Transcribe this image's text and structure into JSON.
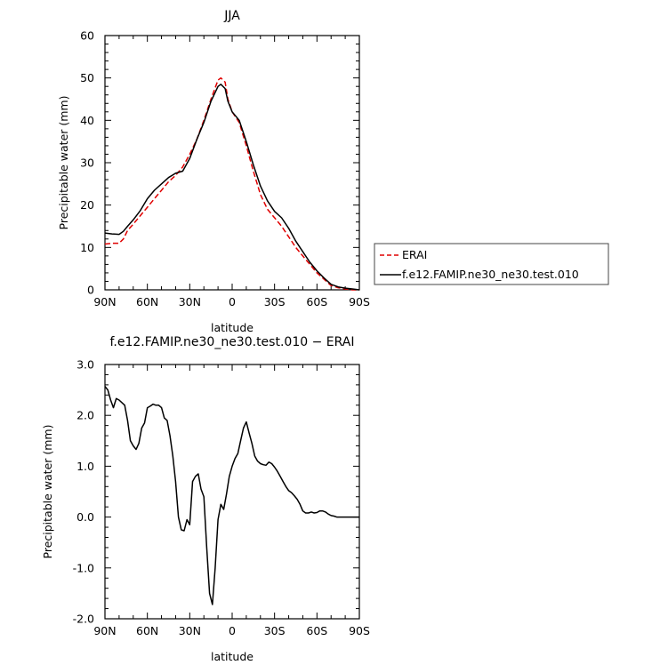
{
  "chart_data": [
    {
      "type": "line",
      "title": "JJA",
      "xlabel": "latitude",
      "ylabel": "Precipitable water (mm)",
      "xlim": [
        90,
        -90
      ],
      "ylim": [
        0,
        60
      ],
      "x_ticks": [
        90,
        60,
        30,
        0,
        -30,
        -60,
        -90
      ],
      "x_tick_labels": [
        "90N",
        "60N",
        "30N",
        "0",
        "30S",
        "60S",
        "90S"
      ],
      "y_ticks": [
        0,
        10,
        20,
        30,
        40,
        50,
        60
      ],
      "y_tick_labels": [
        "0",
        "10",
        "20",
        "30",
        "40",
        "50",
        "60"
      ],
      "legend_placement": "right",
      "series": [
        {
          "name": "ERAI",
          "color": "#e00000",
          "style": "dashed",
          "x": [
            90,
            85,
            80,
            77,
            74,
            70,
            65,
            60,
            55,
            50,
            45,
            40,
            35,
            30,
            25,
            20,
            15,
            10,
            8,
            5,
            3,
            0,
            -5,
            -10,
            -15,
            -20,
            -25,
            -30,
            -35,
            -40,
            -45,
            -50,
            -55,
            -60,
            -65,
            -70,
            -75,
            -80,
            -85,
            -90
          ],
          "y": [
            10.8,
            11.0,
            11.0,
            12.0,
            14.0,
            15.5,
            17.5,
            19.5,
            21.5,
            23.5,
            25.5,
            27.0,
            29.0,
            32.0,
            35.5,
            40.0,
            45.0,
            49.5,
            50.0,
            49.0,
            45.0,
            42.0,
            39.5,
            34.0,
            28.0,
            22.5,
            19.0,
            17.0,
            15.0,
            12.5,
            10.0,
            8.0,
            6.0,
            4.0,
            2.5,
            1.0,
            0.5,
            0.2,
            0.0,
            0.0
          ]
        },
        {
          "name": "f.e12.FAMIP.ne30_ne30.test.010",
          "color": "#000000",
          "style": "solid",
          "x": [
            90,
            85,
            80,
            77,
            74,
            70,
            65,
            60,
            55,
            50,
            45,
            40,
            35,
            30,
            25,
            20,
            15,
            10,
            8,
            5,
            3,
            0,
            -5,
            -10,
            -15,
            -20,
            -25,
            -30,
            -35,
            -40,
            -45,
            -50,
            -55,
            -60,
            -65,
            -70,
            -75,
            -80,
            -85,
            -90
          ],
          "y": [
            13.4,
            13.2,
            13.1,
            13.8,
            15.0,
            16.5,
            18.7,
            21.5,
            23.5,
            25.0,
            26.5,
            27.5,
            28.0,
            31.0,
            35.5,
            39.5,
            44.5,
            48.0,
            48.5,
            47.5,
            44.5,
            42.0,
            40.0,
            35.0,
            29.5,
            24.5,
            21.0,
            18.5,
            17.0,
            14.5,
            11.5,
            9.0,
            6.5,
            4.5,
            2.8,
            1.3,
            0.7,
            0.4,
            0.2,
            0.0
          ]
        }
      ]
    },
    {
      "type": "line",
      "title": "f.e12.FAMIP.ne30_ne30.test.010 − ERAI",
      "xlabel": "latitude",
      "ylabel": "Precipitable water (mm)",
      "xlim": [
        90,
        -90
      ],
      "ylim": [
        -2.0,
        3.0
      ],
      "x_ticks": [
        90,
        60,
        30,
        0,
        -30,
        -60,
        -90
      ],
      "x_tick_labels": [
        "90N",
        "60N",
        "30N",
        "0",
        "30S",
        "60S",
        "90S"
      ],
      "y_ticks": [
        -2.0,
        -1.0,
        0.0,
        1.0,
        2.0,
        3.0
      ],
      "y_tick_labels": [
        "-2.0",
        "-1.0",
        "0.0",
        "1.0",
        "2.0",
        "3.0"
      ],
      "series": [
        {
          "color": "#000000",
          "style": "solid",
          "x": [
            90,
            88,
            86,
            84,
            82,
            80,
            78,
            76,
            74,
            72,
            70,
            68,
            66,
            64,
            62,
            60,
            58,
            56,
            54,
            52,
            50,
            48,
            46,
            44,
            42,
            40,
            38,
            36,
            34,
            32,
            30,
            28,
            26,
            24,
            22,
            20,
            18,
            16,
            14,
            12,
            10,
            8,
            6,
            4,
            2,
            0,
            -2,
            -4,
            -6,
            -8,
            -10,
            -12,
            -14,
            -16,
            -18,
            -20,
            -22,
            -24,
            -26,
            -28,
            -30,
            -32,
            -34,
            -36,
            -38,
            -40,
            -42,
            -44,
            -46,
            -48,
            -50,
            -52,
            -54,
            -56,
            -58,
            -60,
            -62,
            -64,
            -66,
            -68,
            -70,
            -72,
            -74,
            -76,
            -78,
            -80,
            -82,
            -84,
            -86,
            -88,
            -90
          ],
          "y": [
            2.57,
            2.5,
            2.3,
            2.15,
            2.33,
            2.3,
            2.25,
            2.2,
            1.9,
            1.5,
            1.4,
            1.33,
            1.45,
            1.75,
            1.85,
            2.15,
            2.18,
            2.22,
            2.2,
            2.2,
            2.15,
            1.95,
            1.9,
            1.6,
            1.2,
            0.7,
            0.0,
            -0.25,
            -0.27,
            -0.05,
            -0.15,
            0.7,
            0.8,
            0.85,
            0.55,
            0.4,
            -0.6,
            -1.5,
            -1.72,
            -1.0,
            -0.05,
            0.25,
            0.15,
            0.45,
            0.8,
            1.0,
            1.15,
            1.25,
            1.5,
            1.75,
            1.87,
            1.65,
            1.45,
            1.2,
            1.1,
            1.05,
            1.03,
            1.02,
            1.08,
            1.05,
            0.98,
            0.9,
            0.8,
            0.7,
            0.6,
            0.52,
            0.48,
            0.42,
            0.35,
            0.25,
            0.12,
            0.08,
            0.08,
            0.1,
            0.08,
            0.09,
            0.12,
            0.12,
            0.1,
            0.06,
            0.03,
            0.02,
            0.0,
            0.0,
            0.0,
            0.0,
            0.0,
            0.0,
            0.0,
            0.0,
            0.0
          ]
        }
      ]
    }
  ]
}
